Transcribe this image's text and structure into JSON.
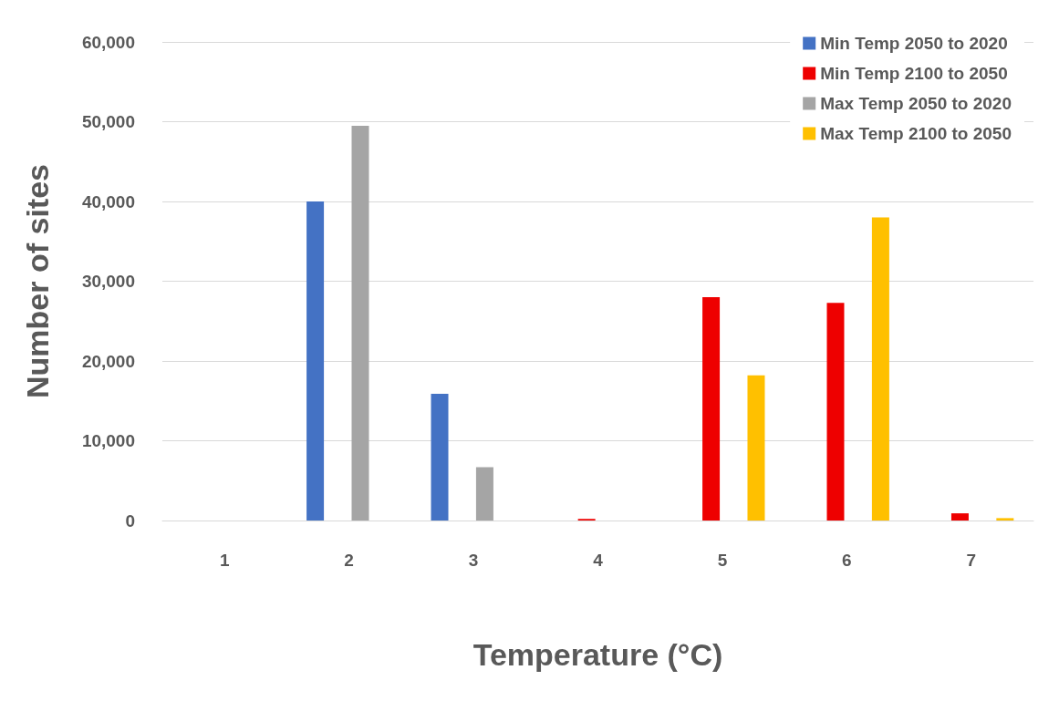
{
  "chart_data": {
    "type": "bar",
    "xlabel": "Temperature (°C)",
    "ylabel": "Number of sites",
    "categories": [
      "1",
      "2",
      "3",
      "4",
      "5",
      "6",
      "7"
    ],
    "series": [
      {
        "name": "Min Temp 2050 to 2020",
        "color": "#4472c4",
        "values": [
          0,
          40000,
          15900,
          0,
          0,
          0,
          0
        ]
      },
      {
        "name": "Min Temp 2100 to 2050",
        "color": "#ee0000",
        "values": [
          0,
          0,
          0,
          200,
          28000,
          27300,
          900
        ]
      },
      {
        "name": "Max Temp 2050 to 2020",
        "color": "#a5a5a5",
        "values": [
          0,
          49500,
          6700,
          0,
          0,
          0,
          0
        ]
      },
      {
        "name": "Max Temp 2100 to 2050",
        "color": "#ffc000",
        "values": [
          0,
          0,
          0,
          0,
          18200,
          38000,
          300
        ]
      }
    ],
    "ylim": [
      0,
      60000
    ],
    "yticks": [
      0,
      {
        "value": 10000,
        "label": "10,000"
      },
      {
        "value": 20000,
        "label": "20,000"
      },
      {
        "value": 30000,
        "label": "30,000"
      },
      {
        "value": 40000,
        "label": "40,000"
      },
      {
        "value": 50000,
        "label": "50,000"
      },
      {
        "value": 60000,
        "label": "60,000"
      }
    ],
    "grid": "y",
    "legend": "top right"
  }
}
